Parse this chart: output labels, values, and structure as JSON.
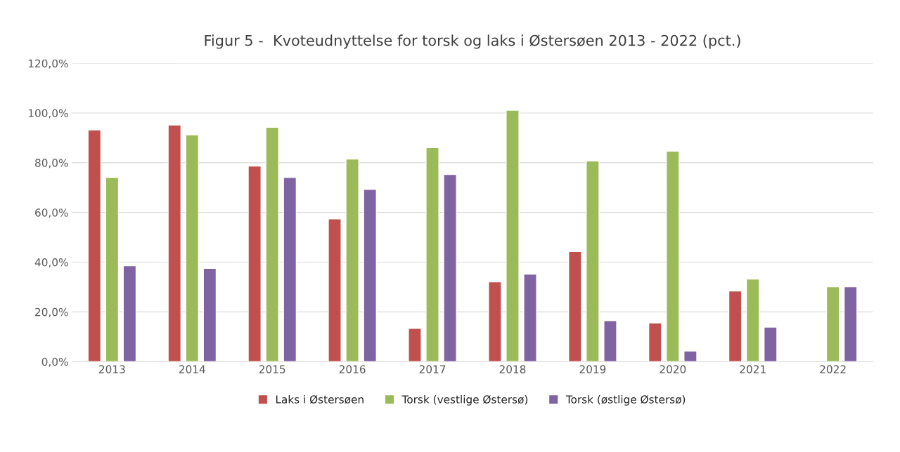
{
  "chart_data": {
    "type": "bar",
    "title": "Figur 5 -  Kvoteudnyttelse for torsk og laks i Østersøen 2013 - 2022 (pct.)",
    "categories": [
      "2013",
      "2014",
      "2015",
      "2016",
      "2017",
      "2018",
      "2019",
      "2020",
      "2021",
      "2022"
    ],
    "series": [
      {
        "name": "Laks i Østersøen",
        "color": "#c0504d",
        "values": [
          93.2,
          95.2,
          78.7,
          57.4,
          13.4,
          32.1,
          44.3,
          15.6,
          28.4,
          null
        ]
      },
      {
        "name": "Torsk (vestlige Østersø)",
        "color": "#9bbb59",
        "values": [
          74.1,
          91.2,
          94.3,
          81.5,
          86.1,
          101.1,
          80.7,
          84.7,
          33.2,
          30.1
        ]
      },
      {
        "name": "Torsk (østlige Østersø)",
        "color": "#8064a2",
        "values": [
          38.6,
          37.5,
          74.1,
          69.3,
          75.3,
          35.2,
          16.5,
          4.3,
          13.9,
          30.1
        ]
      }
    ],
    "ylim": [
      0,
      120
    ],
    "yticks": [
      {
        "value": 0,
        "label": "0,0%"
      },
      {
        "value": 20,
        "label": "20,0%"
      },
      {
        "value": 40,
        "label": "40,0%"
      },
      {
        "value": 60,
        "label": "60,0%"
      },
      {
        "value": 80,
        "label": "80,0%"
      },
      {
        "value": 100,
        "label": "100,0%"
      },
      {
        "value": 120,
        "label": "120,0%"
      }
    ],
    "grid": "y",
    "legend": "bottom"
  }
}
